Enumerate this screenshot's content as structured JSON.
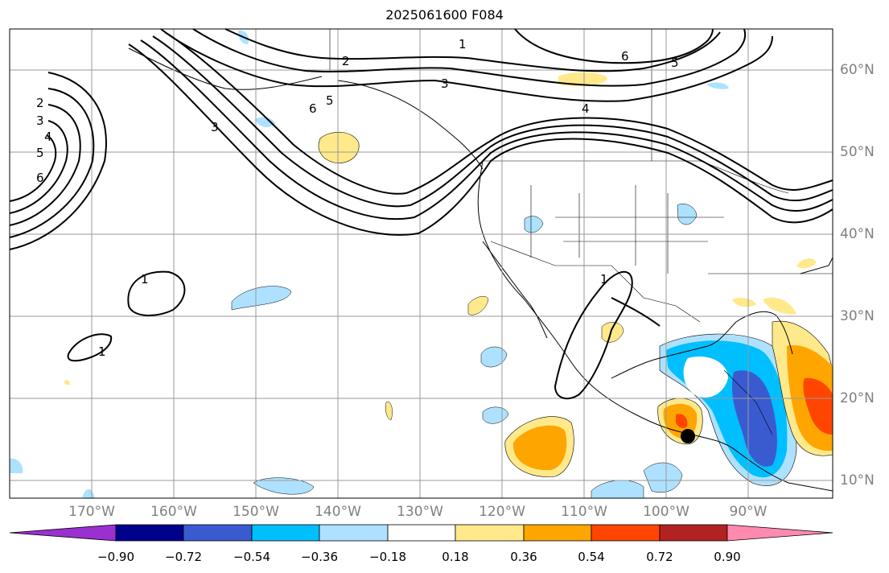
{
  "title": "2025061600 F084",
  "map": {
    "lat_labels": [
      "60°N",
      "50°N",
      "40°N",
      "30°N",
      "20°N",
      "10°N"
    ],
    "lon_labels": [
      "170°W",
      "160°W",
      "150°W",
      "140°W",
      "130°W",
      "120°W",
      "110°W",
      "100°W",
      "90°W"
    ],
    "contour_levels_shown": [
      "1",
      "2",
      "3",
      "4",
      "5",
      "6"
    ],
    "marker": "black-dot-storm-location"
  },
  "colorbar": {
    "tick_labels": [
      "−0.90",
      "−0.72",
      "−0.54",
      "−0.36",
      "−0.18",
      "0.18",
      "0.36",
      "0.54",
      "0.72",
      "0.90"
    ],
    "colors": [
      "#9b30d0",
      "#00008b",
      "#3a5bd0",
      "#00bfff",
      "#aee1ff",
      "#ffffff",
      "#ffe98a",
      "#ffa500",
      "#ff4500",
      "#b22222",
      "#ff8ab0"
    ],
    "extend": "both"
  }
}
